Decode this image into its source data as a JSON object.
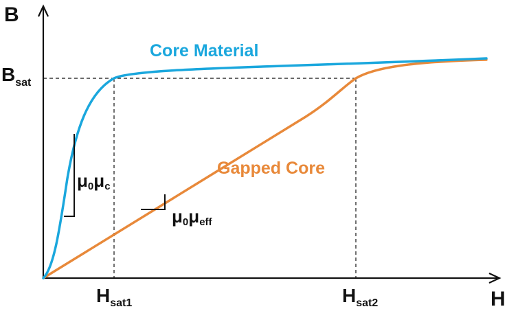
{
  "axes": {
    "y_label": "B",
    "x_label": "H",
    "bsat_main": "B",
    "bsat_sub": "sat",
    "hsat1_main": "H",
    "hsat1_sub": "sat1",
    "hsat2_main": "H",
    "hsat2_sub": "sat2"
  },
  "curves": {
    "core_label": "Core Material",
    "gapped_label": "Gapped Core"
  },
  "slopes": {
    "core_mu": "μ",
    "core_zero": "0",
    "core_mu2": "μ",
    "core_sub": "c",
    "gap_mu": "μ",
    "gap_zero": "0",
    "gap_mu2": "μ",
    "gap_sub": "eff"
  },
  "colors": {
    "core": "#1aa7dd",
    "gapped": "#e8893a",
    "axis": "#111111"
  }
}
